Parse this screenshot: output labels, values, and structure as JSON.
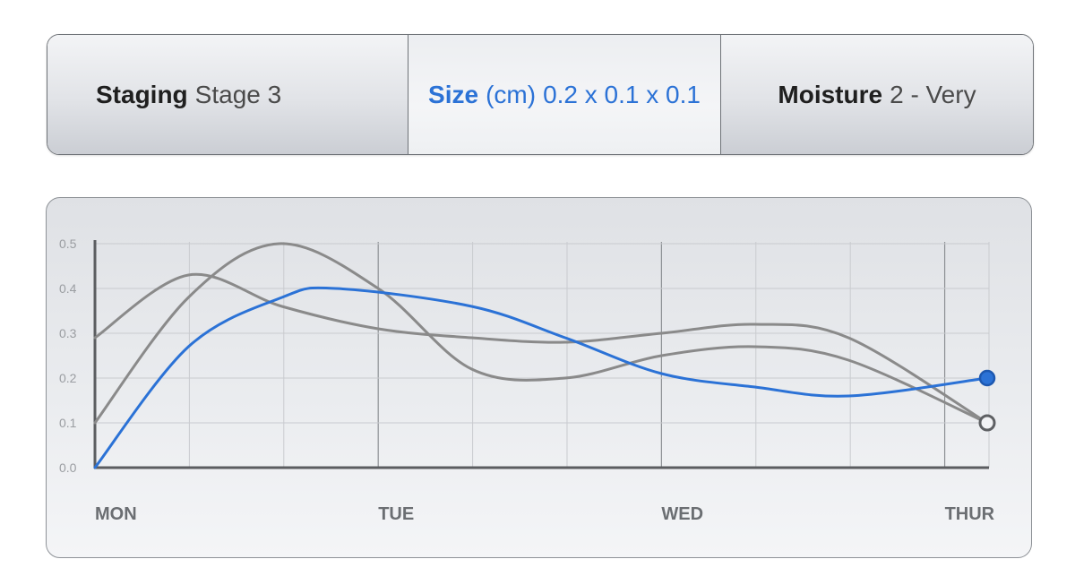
{
  "tabs": [
    {
      "key": "Staging",
      "unit": "",
      "value": "Stage 3",
      "active": false
    },
    {
      "key": "Size",
      "unit": "(cm)",
      "value": "0.2 x 0.1 x 0.1",
      "active": true
    },
    {
      "key": "Moisture",
      "unit": "",
      "value": "2 - Very",
      "active": false
    }
  ],
  "colors": {
    "accent": "#2b72d6",
    "series_gray": "#8a8a8a",
    "axis": "#5b5d60",
    "label": "#6b6e72"
  },
  "chart_data": {
    "type": "line",
    "title": "",
    "xlabel": "",
    "ylabel": "",
    "categories": [
      "MON",
      "TUE",
      "WED",
      "THUR"
    ],
    "xlim": [
      0,
      3.15
    ],
    "ylim": [
      0,
      0.5
    ],
    "yticks": [
      "0.0",
      "0.1",
      "0.2",
      "0.3",
      "0.4",
      "0.5"
    ],
    "grid": true,
    "series": [
      {
        "color": "#8a8a8a",
        "points": [
          [
            0,
            0.29
          ],
          [
            0.33,
            0.43
          ],
          [
            0.66,
            0.36
          ],
          [
            1.0,
            0.31
          ],
          [
            1.33,
            0.29
          ],
          [
            1.66,
            0.28
          ],
          [
            2.0,
            0.3
          ],
          [
            2.33,
            0.32
          ],
          [
            2.66,
            0.29
          ],
          [
            3.15,
            0.1
          ]
        ],
        "end_marker": "hollow"
      },
      {
        "color": "#8a8a8a",
        "points": [
          [
            0,
            0.1
          ],
          [
            0.33,
            0.38
          ],
          [
            0.65,
            0.5
          ],
          [
            1.0,
            0.4
          ],
          [
            1.33,
            0.22
          ],
          [
            1.66,
            0.2
          ],
          [
            2.0,
            0.25
          ],
          [
            2.33,
            0.27
          ],
          [
            2.66,
            0.24
          ],
          [
            3.15,
            0.1
          ]
        ],
        "end_marker": "none"
      },
      {
        "color": "#2b72d6",
        "points": [
          [
            0,
            0.0
          ],
          [
            0.33,
            0.27
          ],
          [
            0.66,
            0.38
          ],
          [
            0.85,
            0.4
          ],
          [
            1.33,
            0.36
          ],
          [
            1.66,
            0.29
          ],
          [
            2.0,
            0.21
          ],
          [
            2.33,
            0.18
          ],
          [
            2.66,
            0.16
          ],
          [
            3.15,
            0.2
          ]
        ],
        "end_marker": "filled"
      }
    ]
  }
}
